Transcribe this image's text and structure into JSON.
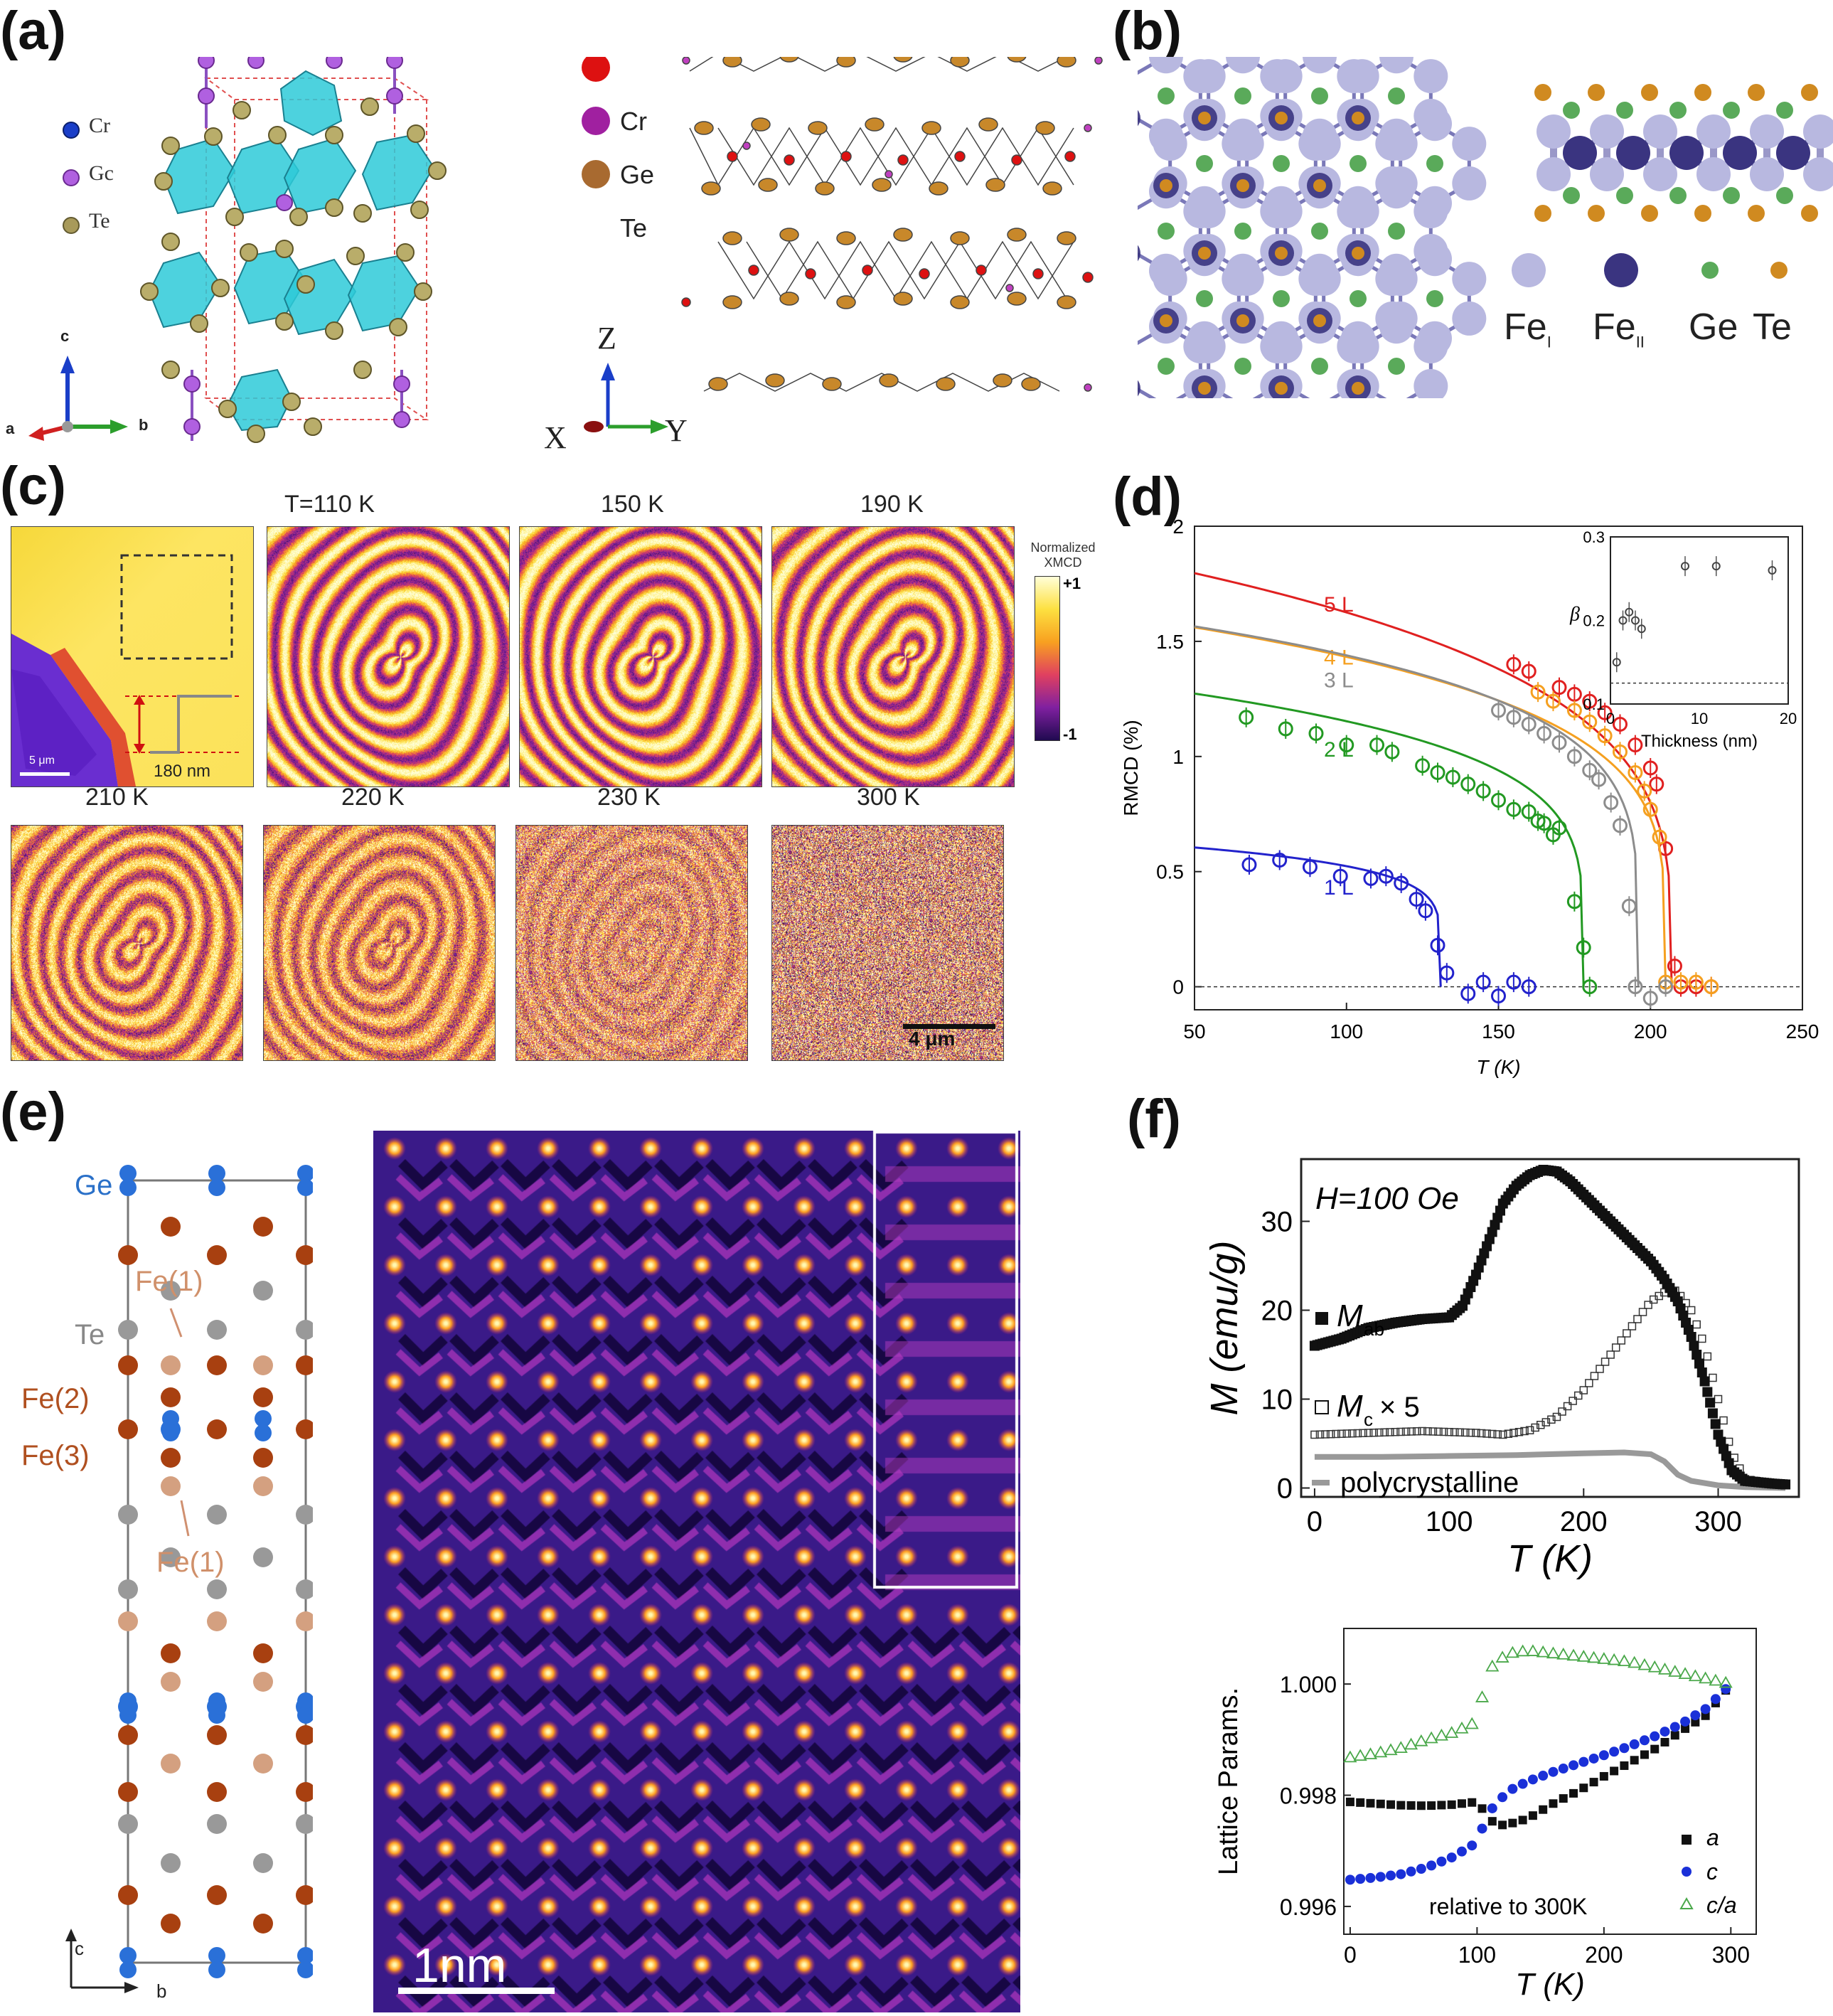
{
  "panels": {
    "a": {
      "label": "(a)",
      "legend_left": [
        "Cr",
        "Gc",
        "Te"
      ],
      "legend_right": [
        "Cr",
        "Ge",
        "Te"
      ],
      "axes_left": [
        "c",
        "a",
        "b"
      ],
      "axes_right": [
        "Z",
        "X",
        "Y"
      ]
    },
    "b": {
      "label": "(b)",
      "legend": [
        "Fe",
        "Fe",
        "Ge",
        "Te"
      ],
      "legend_sub": [
        "I",
        "II"
      ]
    },
    "c": {
      "label": "(c)",
      "temps_top": [
        "T=110 K",
        "150 K",
        "190 K"
      ],
      "temps_bottom": [
        "210 K",
        "220 K",
        "230 K",
        "300 K"
      ],
      "colorbar_title": [
        "Normalized",
        "XMCD"
      ],
      "colorbar_max": "+1",
      "colorbar_min": "-1",
      "step_label": "180 nm",
      "scale_small": "5 μm",
      "scale_big": "4 μm"
    },
    "d": {
      "label": "(d)"
    },
    "e": {
      "label": "(e)",
      "atoms": [
        "Ge",
        "Te",
        "Fe(1)",
        "Fe(2)",
        "Fe(3)",
        "Fe(1)"
      ],
      "axes": [
        "c",
        "b"
      ],
      "scale": "1nm"
    },
    "f": {
      "label": "(f)",
      "field": "H=100 Oe",
      "legend_top": [
        "M",
        "ab",
        "M",
        "c",
        "× 5",
        "polycrystalline"
      ],
      "legend_bottom": [
        "a",
        "c",
        "c/a"
      ],
      "note": "relative to 300K"
    }
  },
  "chart_data": [
    {
      "type": "scatter",
      "panel": "d",
      "xlabel": "T (K)",
      "ylabel": "RMCD (%)",
      "xlim": [
        50,
        250
      ],
      "ylim": [
        -0.1,
        2
      ],
      "xticks": [
        50,
        100,
        150,
        200,
        250
      ],
      "yticks": [
        0,
        0.5,
        1,
        1.5,
        2
      ],
      "series": [
        {
          "name": "5 L",
          "color": "#e02020",
          "Tc": 207,
          "M0": 1.93,
          "beta": 0.26,
          "x": [
            155,
            160,
            170,
            175,
            180,
            185,
            190,
            195,
            200,
            202,
            205,
            208,
            210,
            215,
            220
          ],
          "y": [
            1.4,
            1.37,
            1.3,
            1.27,
            1.24,
            1.19,
            1.14,
            1.05,
            0.95,
            0.88,
            0.6,
            0.09,
            0.0,
            0.0,
            0.0
          ]
        },
        {
          "name": "4 L",
          "color": "#f5a020",
          "Tc": 205,
          "M0": 1.66,
          "beta": 0.22,
          "x": [
            163,
            168,
            175,
            180,
            185,
            190,
            195,
            198,
            200,
            203,
            205,
            210,
            215,
            220
          ],
          "y": [
            1.28,
            1.24,
            1.2,
            1.15,
            1.09,
            1.02,
            0.93,
            0.85,
            0.77,
            0.65,
            0.02,
            0.02,
            0.02,
            0.0
          ]
        },
        {
          "name": "3 L",
          "color": "#8c8c8c",
          "Tc": 196,
          "M0": 1.66,
          "beta": 0.2,
          "x": [
            150,
            155,
            160,
            165,
            170,
            175,
            180,
            183,
            187,
            190,
            193,
            195,
            200,
            205
          ],
          "y": [
            1.2,
            1.17,
            1.14,
            1.1,
            1.06,
            1.0,
            0.94,
            0.9,
            0.8,
            0.7,
            0.35,
            0.0,
            -0.05,
            0.0
          ]
        },
        {
          "name": "2 L",
          "color": "#229922",
          "Tc": 178,
          "M0": 1.36,
          "beta": 0.2,
          "x": [
            67,
            80,
            90,
            100,
            110,
            115,
            125,
            130,
            135,
            140,
            145,
            150,
            155,
            160,
            163,
            165,
            168,
            170,
            175,
            178,
            180
          ],
          "y": [
            1.17,
            1.12,
            1.1,
            1.05,
            1.05,
            1.02,
            0.96,
            0.93,
            0.91,
            0.88,
            0.85,
            0.81,
            0.77,
            0.76,
            0.72,
            0.71,
            0.66,
            0.69,
            0.37,
            0.17,
            0.0
          ]
        },
        {
          "name": "1 L",
          "color": "#2222cc",
          "Tc": 131,
          "M0": 0.65,
          "beta": 0.15,
          "x": [
            68,
            78,
            88,
            98,
            108,
            113,
            118,
            123,
            126,
            130,
            133,
            140,
            145,
            150,
            155,
            160
          ],
          "y": [
            0.53,
            0.55,
            0.52,
            0.48,
            0.47,
            0.48,
            0.45,
            0.38,
            0.33,
            0.18,
            0.06,
            -0.03,
            0.02,
            -0.04,
            0.02,
            0.0
          ]
        }
      ],
      "inset": {
        "xlabel": "Thickness (nm)",
        "ylabel": "β",
        "xlim": [
          0,
          20
        ],
        "ylim": [
          0.1,
          0.3
        ],
        "xticks": [
          0,
          10,
          20
        ],
        "yticks": [
          0.1,
          0.2,
          0.3
        ],
        "x": [
          0.7,
          1.4,
          2.1,
          2.8,
          3.5,
          8.4,
          11.9,
          18.2
        ],
        "y": [
          0.15,
          0.2,
          0.21,
          0.2,
          0.19,
          0.265,
          0.265,
          0.26
        ],
        "ref": 0.125
      }
    },
    {
      "type": "scatter",
      "panel": "f-top",
      "xlabel": "T (K)",
      "ylabel": "M (emu/g)",
      "xlim": [
        -10,
        360
      ],
      "ylim": [
        -1,
        37
      ],
      "xticks": [
        0,
        100,
        200,
        300
      ],
      "yticks": [
        0,
        10,
        20,
        30
      ],
      "series": [
        {
          "name": "M_ab",
          "x": [
            0,
            20,
            40,
            60,
            80,
            100,
            110,
            120,
            130,
            140,
            150,
            160,
            170,
            180,
            190,
            200,
            210,
            220,
            230,
            240,
            250,
            260,
            270,
            280,
            290,
            300,
            310,
            320,
            340,
            350
          ],
          "y": [
            16,
            16.8,
            18,
            18.6,
            19,
            19.2,
            20.5,
            24,
            28,
            32,
            34,
            35.2,
            35.8,
            35.6,
            34.5,
            33,
            31.5,
            30,
            28.5,
            27,
            25.5,
            23.5,
            21,
            17,
            12,
            6,
            2,
            0.8,
            0.5,
            0.4
          ]
        },
        {
          "name": "M_c x 5",
          "x": [
            0,
            40,
            80,
            120,
            140,
            160,
            180,
            200,
            220,
            240,
            250,
            260,
            265,
            270,
            280,
            290,
            300,
            310,
            320,
            340,
            350
          ],
          "y": [
            6,
            6.2,
            6.4,
            6.2,
            6,
            6.5,
            8,
            11,
            15,
            19,
            21,
            22,
            22.5,
            22,
            20,
            16,
            10,
            4,
            1,
            0.5,
            0.4
          ]
        },
        {
          "name": "polycrystalline",
          "x": [
            0,
            50,
            100,
            150,
            200,
            230,
            250,
            260,
            270,
            280,
            300,
            320,
            350
          ],
          "y": [
            3.5,
            3.5,
            3.6,
            3.7,
            3.9,
            4.0,
            3.8,
            3.0,
            1.5,
            0.8,
            0.3,
            0.1,
            0.0
          ]
        }
      ]
    },
    {
      "type": "scatter",
      "panel": "f-bottom",
      "xlabel": "T (K)",
      "ylabel": "Lattice Params.",
      "xlim": [
        -5,
        320
      ],
      "ylim": [
        0.9955,
        1.001
      ],
      "xticks": [
        0,
        100,
        200,
        300
      ],
      "yticks": [
        0.996,
        0.998,
        1.0
      ],
      "series": [
        {
          "name": "a",
          "x": [
            0,
            20,
            40,
            60,
            80,
            100,
            108,
            115,
            125,
            140,
            160,
            180,
            200,
            220,
            240,
            260,
            280,
            300
          ],
          "y": [
            0.99788,
            0.99785,
            0.99782,
            0.99781,
            0.99783,
            0.99788,
            0.99764,
            0.99745,
            0.99748,
            0.99758,
            0.99785,
            0.99808,
            0.99834,
            0.99858,
            0.99883,
            0.99914,
            0.99943,
            1.0
          ]
        },
        {
          "name": "c",
          "x": [
            0,
            20,
            40,
            60,
            80,
            100,
            108,
            115,
            125,
            140,
            160,
            180,
            200,
            220,
            240,
            260,
            280,
            300
          ],
          "y": [
            0.99648,
            0.99652,
            0.99658,
            0.9967,
            0.99688,
            0.99715,
            0.99765,
            0.99785,
            0.99808,
            0.99825,
            0.99842,
            0.99857,
            0.99872,
            0.99888,
            0.99906,
            0.99927,
            0.99955,
            1.0
          ]
        },
        {
          "name": "c/a",
          "x": [
            0,
            20,
            40,
            60,
            80,
            100,
            108,
            115,
            125,
            140,
            160,
            180,
            200,
            220,
            240,
            260,
            280,
            300
          ],
          "y": [
            0.99868,
            0.99875,
            0.99885,
            0.999,
            0.99912,
            0.99932,
            1.0002,
            1.0004,
            1.00055,
            1.0006,
            1.00055,
            1.0005,
            1.00045,
            1.0004,
            1.0003,
            1.0002,
            1.0001,
            1.0
          ]
        }
      ]
    }
  ]
}
